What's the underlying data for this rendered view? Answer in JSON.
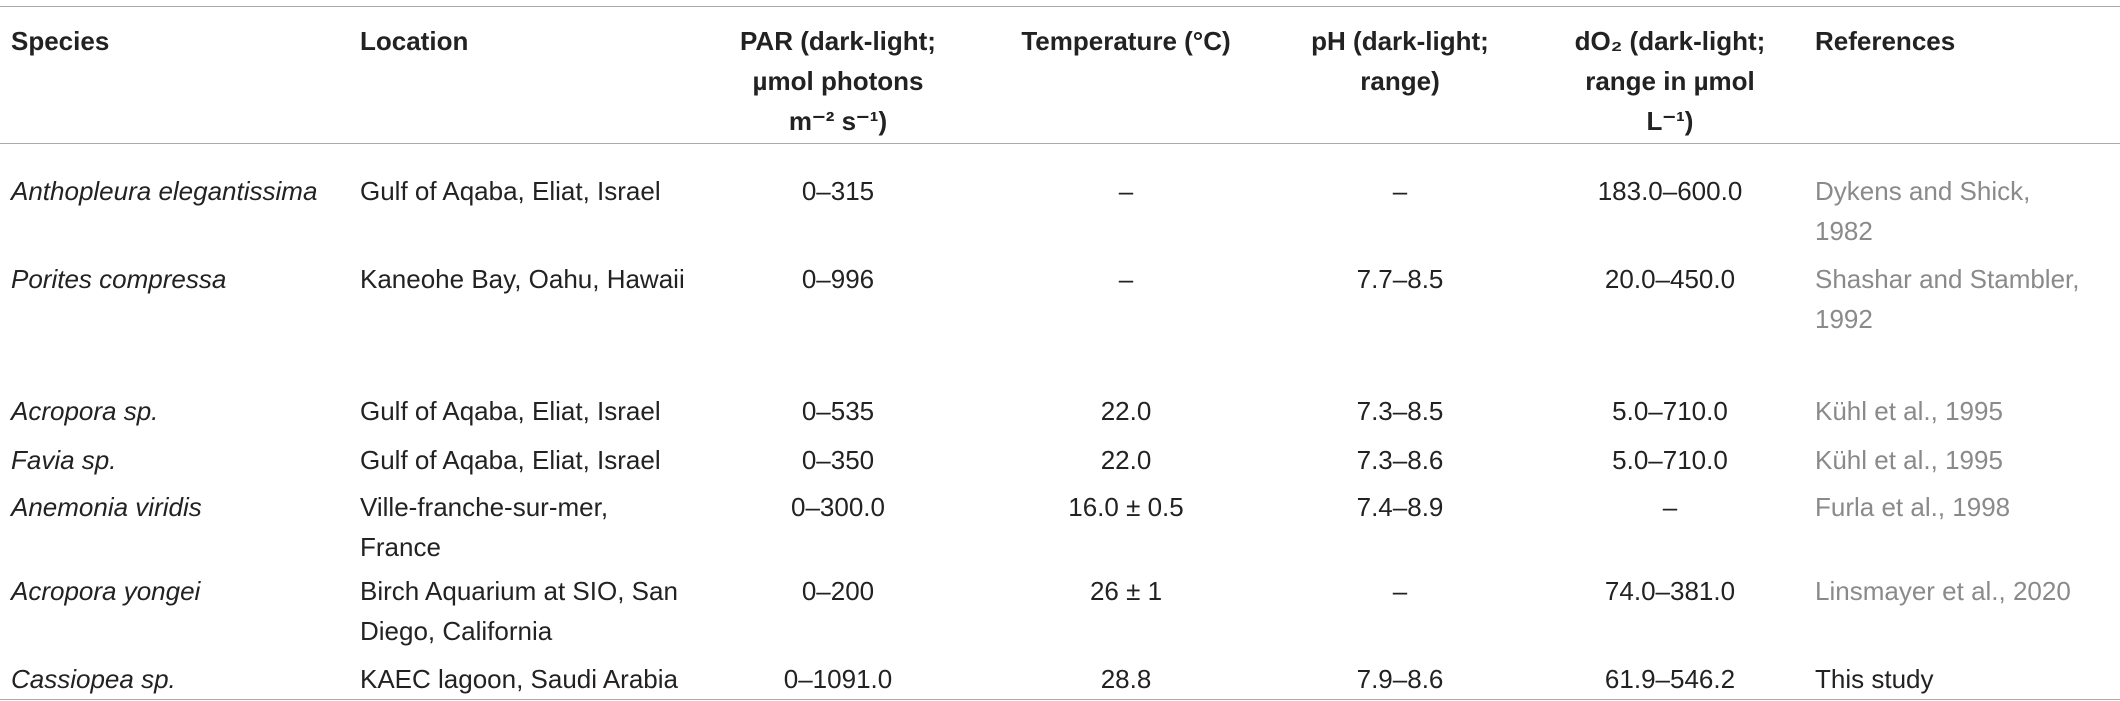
{
  "table": {
    "header": [
      [
        "Species"
      ],
      [
        "Location"
      ],
      [
        "PAR (dark-light;",
        "µmol photons",
        "m⁻² s⁻¹)"
      ],
      [
        "Temperature (°C)"
      ],
      [
        "pH (dark-light;",
        "range)"
      ],
      [
        "dO₂ (dark-light;",
        "range in µmol",
        "L⁻¹)"
      ],
      [
        "References"
      ]
    ],
    "rows": [
      [
        [
          "Anthopleura elegantissima"
        ],
        [
          "Gulf of Aqaba, Eliat, Israel"
        ],
        [
          "0–315"
        ],
        [
          "–"
        ],
        [
          "–"
        ],
        [
          "183.0–600.0"
        ],
        [
          "Dykens and Shick,",
          "1982"
        ]
      ],
      [
        [
          "Porites compressa"
        ],
        [
          "Kaneohe Bay, Oahu, Hawaii"
        ],
        [
          "0–996"
        ],
        [
          "–"
        ],
        [
          "7.7–8.5"
        ],
        [
          "20.0–450.0"
        ],
        [
          "Shashar and Stambler,",
          "1992"
        ]
      ],
      [
        [
          "Acropora sp."
        ],
        [
          "Gulf of Aqaba, Eliat, Israel"
        ],
        [
          "0–535"
        ],
        [
          "22.0"
        ],
        [
          "7.3–8.5"
        ],
        [
          "5.0–710.0"
        ],
        [
          "Kühl et al., 1995"
        ]
      ],
      [
        [
          "Favia sp."
        ],
        [
          "Gulf of Aqaba, Eliat, Israel"
        ],
        [
          "0–350"
        ],
        [
          "22.0"
        ],
        [
          "7.3–8.6"
        ],
        [
          "5.0–710.0"
        ],
        [
          "Kühl et al., 1995"
        ]
      ],
      [
        [
          "Anemonia viridis"
        ],
        [
          "Ville-franche-sur-mer,",
          "France"
        ],
        [
          "0–300.0"
        ],
        [
          "16.0 ± 0.5"
        ],
        [
          "7.4–8.9"
        ],
        [
          "–"
        ],
        [
          "Furla et al., 1998"
        ]
      ],
      [
        [
          "Acropora yongei"
        ],
        [
          "Birch Aquarium at SIO, San",
          "Diego, California"
        ],
        [
          "0–200"
        ],
        [
          "26 ± 1"
        ],
        [
          "–"
        ],
        [
          "74.0–381.0"
        ],
        [
          "Linsmayer et al., 2020"
        ]
      ],
      [
        [
          "Cassiopea sp."
        ],
        [
          "KAEC lagoon, Saudi Arabia"
        ],
        [
          "0–1091.0"
        ],
        [
          "28.8"
        ],
        [
          "7.9–8.6"
        ],
        [
          "61.9–546.2"
        ],
        [
          "This study"
        ]
      ]
    ]
  }
}
